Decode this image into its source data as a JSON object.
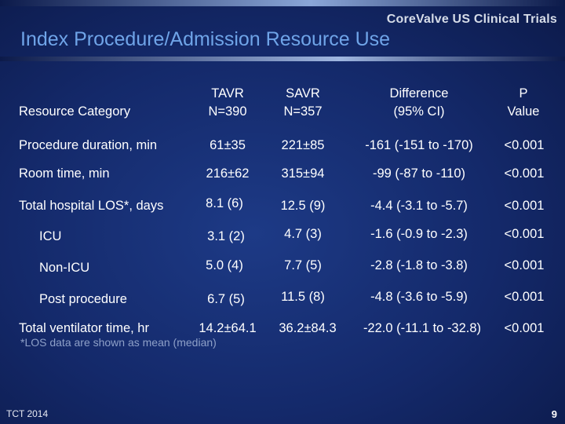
{
  "brand": "CoreValve US Clinical Trials",
  "title": "Index Procedure/Admission Resource Use",
  "table": {
    "headers": {
      "category": "Resource Category",
      "tavr": [
        "TAVR",
        "N=390"
      ],
      "savr": [
        "SAVR",
        "N=357"
      ],
      "difference": [
        "Difference",
        "(95% CI)"
      ],
      "p": [
        "P",
        "Value"
      ]
    },
    "rows": [
      {
        "category": "Procedure duration, min",
        "tavr": "61±35",
        "savr": "221±85",
        "difference": "-161 (-151 to -170)",
        "p": "<0.001"
      },
      {
        "category": "Room time, min",
        "tavr": "216±62",
        "savr": "315±94",
        "difference": "-99 (-87 to -110)",
        "p": "<0.001"
      },
      {
        "category": "Total hospital LOS*, days",
        "tavr": "8.1 (6)",
        "savr": "12.5 (9)",
        "difference": "-4.4 (-3.1 to -5.7)",
        "p": "<0.001"
      },
      {
        "category": "ICU",
        "tavr": "3.1 (2)",
        "savr": "4.7 (3)",
        "difference": "-1.6 (-0.9 to -2.3)",
        "p": "<0.001"
      },
      {
        "category": "Non-ICU",
        "tavr": "5.0 (4)",
        "savr": "7.7 (5)",
        "difference": "-2.8 (-1.8 to -3.8)",
        "p": "<0.001"
      },
      {
        "category": "Post procedure",
        "tavr": "6.7 (5)",
        "savr": "11.5 (8)",
        "difference": "-4.8 (-3.6 to -5.9)",
        "p": "<0.001"
      },
      {
        "category": "Total ventilator time, hr",
        "tavr": "14.2±64.1",
        "savr": "36.2±84.3",
        "difference": "-22.0 (-11.1 to -32.8)",
        "p": "<0.001"
      }
    ]
  },
  "footnote": "*LOS data are shown as mean (median)",
  "footer_left": "TCT 2014",
  "page_number": "9"
}
